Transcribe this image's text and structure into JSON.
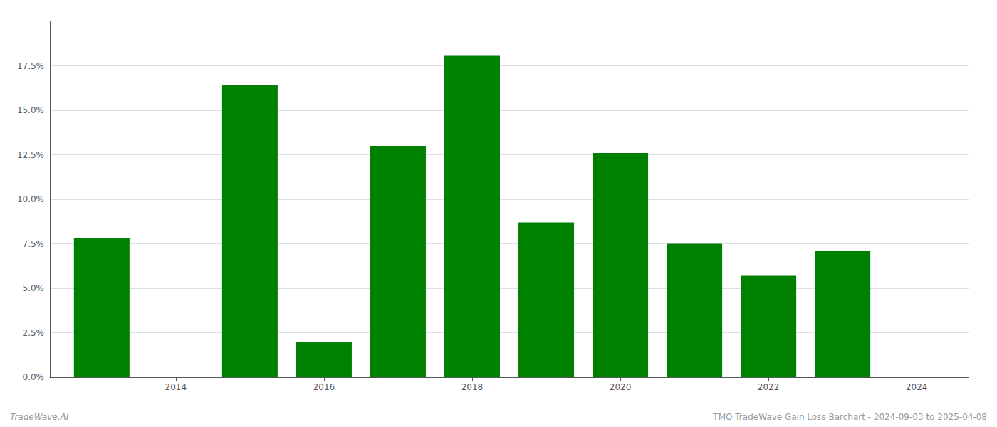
{
  "chart_data": {
    "type": "bar",
    "x": [
      2013,
      2015,
      2016,
      2017,
      2018,
      2019,
      2020,
      2021,
      2022,
      2023
    ],
    "values": [
      0.078,
      0.164,
      0.02,
      0.13,
      0.181,
      0.087,
      0.126,
      0.075,
      0.057,
      0.071
    ],
    "color": "#008000",
    "xlim": [
      2012.3,
      2024.7
    ],
    "xticks": [
      2014,
      2016,
      2018,
      2020,
      2022,
      2024
    ],
    "ylim": [
      0,
      0.2
    ],
    "yticks": [
      {
        "value": 0.0,
        "label": "0.0%"
      },
      {
        "value": 0.025,
        "label": "2.5%"
      },
      {
        "value": 0.05,
        "label": "5.0%"
      },
      {
        "value": 0.075,
        "label": "7.5%"
      },
      {
        "value": 0.1,
        "label": "10.0%"
      },
      {
        "value": 0.125,
        "label": "12.5%"
      },
      {
        "value": 0.15,
        "label": "15.0%"
      },
      {
        "value": 0.175,
        "label": "17.5%"
      }
    ],
    "grid": true,
    "annotations": [
      "TradeWave.AI",
      "TMO TradeWave Gain Loss Barchart - 2024-09-03 to 2025-04-08"
    ]
  }
}
